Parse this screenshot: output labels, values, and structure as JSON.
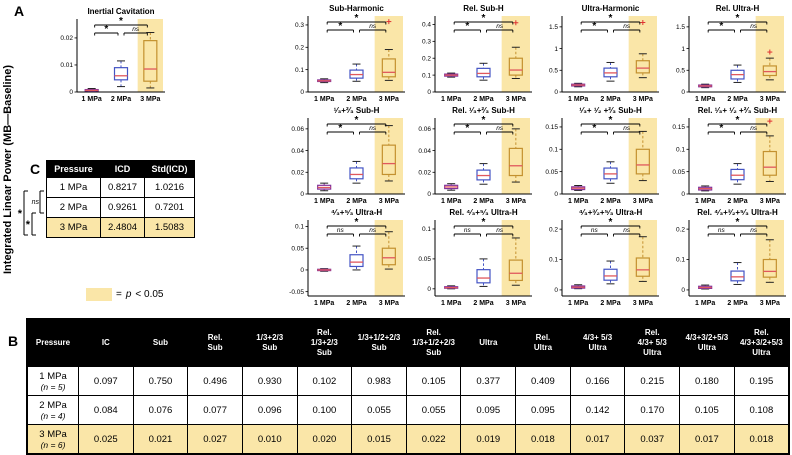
{
  "figure": {
    "panel_a_label": "A",
    "panel_b_label": "B",
    "panel_c_label": "C",
    "y_axis_label": "Integrated Linear Power (MB—Baseline)"
  },
  "chart_data": {
    "type": "box",
    "x_categories": [
      "1 MPa",
      "2 MPa",
      "3 MPa"
    ],
    "highlight_note": "yellow band on 3 MPa group = p < 0.05",
    "plots": [
      {
        "title": "Inertial Cavitation",
        "ylim": [
          0,
          0.027
        ],
        "yticks": [
          0,
          0.01,
          0.02
        ],
        "boxes": [
          {
            "lo": 0.0002,
            "q1": 0.0004,
            "med": 0.0006,
            "q3": 0.0009,
            "hi": 0.0013,
            "outliers": []
          },
          {
            "lo": 0.002,
            "q1": 0.0045,
            "med": 0.006,
            "q3": 0.009,
            "hi": 0.0115,
            "outliers": []
          },
          {
            "lo": 0.0015,
            "q1": 0.004,
            "med": 0.0085,
            "q3": 0.019,
            "hi": 0.022,
            "outliers": []
          }
        ],
        "highlight": 2,
        "sig": [
          {
            "span": [
              0,
              2
            ],
            "label": "*",
            "level": 0
          },
          {
            "span": [
              0,
              1
            ],
            "label": "*",
            "level": 1
          },
          {
            "span": [
              1,
              2
            ],
            "label": "ns",
            "level": 1
          }
        ]
      },
      {
        "title": "Sub-Harmonic",
        "ylim": [
          0,
          0.34
        ],
        "yticks": [
          0,
          0.1,
          0.2,
          0.3
        ],
        "boxes": [
          {
            "lo": 0.042,
            "q1": 0.047,
            "med": 0.05,
            "q3": 0.054,
            "hi": 0.059,
            "outliers": []
          },
          {
            "lo": 0.048,
            "q1": 0.062,
            "med": 0.078,
            "q3": 0.098,
            "hi": 0.125,
            "outliers": []
          },
          {
            "lo": 0.052,
            "q1": 0.068,
            "med": 0.088,
            "q3": 0.148,
            "hi": 0.19,
            "outliers": [
              0.315
            ]
          }
        ],
        "highlight": 2,
        "sig": [
          {
            "span": [
              0,
              2
            ],
            "label": "*",
            "level": 0
          },
          {
            "span": [
              0,
              1
            ],
            "label": "*",
            "level": 1
          },
          {
            "span": [
              1,
              2
            ],
            "label": "ns",
            "level": 1
          }
        ]
      },
      {
        "title": "Rel. Sub-H",
        "ylim": [
          0,
          0.45
        ],
        "yticks": [
          0,
          0.1,
          0.2,
          0.3,
          0.4
        ],
        "boxes": [
          {
            "lo": 0.088,
            "q1": 0.094,
            "med": 0.1,
            "q3": 0.106,
            "hi": 0.112,
            "outliers": []
          },
          {
            "lo": 0.07,
            "q1": 0.09,
            "med": 0.11,
            "q3": 0.14,
            "hi": 0.17,
            "outliers": []
          },
          {
            "lo": 0.08,
            "q1": 0.1,
            "med": 0.13,
            "q3": 0.2,
            "hi": 0.265,
            "outliers": [
              0.41
            ]
          }
        ],
        "highlight": 2,
        "sig": [
          {
            "span": [
              0,
              2
            ],
            "label": "*",
            "level": 0
          },
          {
            "span": [
              0,
              1
            ],
            "label": "*",
            "level": 1
          },
          {
            "span": [
              1,
              2
            ],
            "label": "ns",
            "level": 1
          }
        ]
      },
      {
        "title": "Ultra-Harmonic",
        "ylim": [
          0,
          1.75
        ],
        "yticks": [
          0,
          0.5,
          1,
          1.5
        ],
        "boxes": [
          {
            "lo": 0.12,
            "q1": 0.14,
            "med": 0.16,
            "q3": 0.18,
            "hi": 0.2,
            "outliers": []
          },
          {
            "lo": 0.25,
            "q1": 0.35,
            "med": 0.44,
            "q3": 0.55,
            "hi": 0.68,
            "outliers": []
          },
          {
            "lo": 0.33,
            "q1": 0.44,
            "med": 0.55,
            "q3": 0.72,
            "hi": 0.88,
            "outliers": [
              1.6
            ]
          }
        ],
        "highlight": 2,
        "sig": [
          {
            "span": [
              0,
              2
            ],
            "label": "*",
            "level": 0
          },
          {
            "span": [
              0,
              1
            ],
            "label": "*",
            "level": 1
          },
          {
            "span": [
              1,
              2
            ],
            "label": "ns",
            "level": 1
          }
        ]
      },
      {
        "title": "Rel. Ultra-H",
        "ylim": [
          0,
          1.75
        ],
        "yticks": [
          0,
          0.5,
          1,
          1.5
        ],
        "boxes": [
          {
            "lo": 0.1,
            "q1": 0.12,
            "med": 0.14,
            "q3": 0.16,
            "hi": 0.18,
            "outliers": []
          },
          {
            "lo": 0.22,
            "q1": 0.3,
            "med": 0.4,
            "q3": 0.5,
            "hi": 0.62,
            "outliers": []
          },
          {
            "lo": 0.28,
            "q1": 0.38,
            "med": 0.47,
            "q3": 0.6,
            "hi": 0.78,
            "outliers": [
              0.92
            ]
          }
        ],
        "highlight": 2,
        "sig": [
          {
            "span": [
              0,
              2
            ],
            "label": "*",
            "level": 0
          },
          {
            "span": [
              0,
              1
            ],
            "label": "*",
            "level": 1
          },
          {
            "span": [
              1,
              2
            ],
            "label": "ns",
            "level": 1
          }
        ]
      },
      {
        "title": "¹⁄₃+²⁄₃ Sub-H",
        "ylim": [
          0,
          0.07
        ],
        "yticks": [
          0,
          0.02,
          0.04,
          0.06
        ],
        "boxes": [
          {
            "lo": 0.003,
            "q1": 0.0045,
            "med": 0.006,
            "q3": 0.008,
            "hi": 0.01,
            "outliers": []
          },
          {
            "lo": 0.01,
            "q1": 0.014,
            "med": 0.018,
            "q3": 0.024,
            "hi": 0.03,
            "outliers": []
          },
          {
            "lo": 0.012,
            "q1": 0.018,
            "med": 0.028,
            "q3": 0.045,
            "hi": 0.063,
            "outliers": []
          }
        ],
        "highlight": 2,
        "sig": [
          {
            "span": [
              0,
              2
            ],
            "label": "*",
            "level": 0
          },
          {
            "span": [
              0,
              1
            ],
            "label": "*",
            "level": 1
          },
          {
            "span": [
              1,
              2
            ],
            "label": "ns",
            "level": 1
          }
        ]
      },
      {
        "title": "Rel. ¹⁄₃+²⁄₃ Sub-H",
        "ylim": [
          0,
          0.07
        ],
        "yticks": [
          0,
          0.02,
          0.04,
          0.06
        ],
        "boxes": [
          {
            "lo": 0.0035,
            "q1": 0.005,
            "med": 0.0065,
            "q3": 0.008,
            "hi": 0.0095,
            "outliers": []
          },
          {
            "lo": 0.009,
            "q1": 0.013,
            "med": 0.017,
            "q3": 0.022,
            "hi": 0.028,
            "outliers": []
          },
          {
            "lo": 0.011,
            "q1": 0.017,
            "med": 0.026,
            "q3": 0.042,
            "hi": 0.06,
            "outliers": []
          }
        ],
        "highlight": 2,
        "sig": [
          {
            "span": [
              0,
              2
            ],
            "label": "*",
            "level": 0
          },
          {
            "span": [
              0,
              1
            ],
            "label": "*",
            "level": 1
          },
          {
            "span": [
              1,
              2
            ],
            "label": "ns",
            "level": 1
          }
        ]
      },
      {
        "title": "¹⁄₃+ ¹⁄₂ +²⁄₃ Sub-H",
        "ylim": [
          0,
          0.17
        ],
        "yticks": [
          0,
          0.05,
          0.1,
          0.15
        ],
        "boxes": [
          {
            "lo": 0.008,
            "q1": 0.01,
            "med": 0.013,
            "q3": 0.016,
            "hi": 0.019,
            "outliers": []
          },
          {
            "lo": 0.024,
            "q1": 0.034,
            "med": 0.045,
            "q3": 0.058,
            "hi": 0.072,
            "outliers": []
          },
          {
            "lo": 0.03,
            "q1": 0.045,
            "med": 0.065,
            "q3": 0.1,
            "hi": 0.14,
            "outliers": []
          }
        ],
        "highlight": 2,
        "sig": [
          {
            "span": [
              0,
              2
            ],
            "label": "*",
            "level": 0
          },
          {
            "span": [
              0,
              1
            ],
            "label": "*",
            "level": 1
          },
          {
            "span": [
              1,
              2
            ],
            "label": "ns",
            "level": 1
          }
        ]
      },
      {
        "title": "Rel. ¹⁄₃+ ¹⁄₂ +²⁄₃ Sub-H",
        "ylim": [
          0,
          0.17
        ],
        "yticks": [
          0,
          0.05,
          0.1,
          0.15
        ],
        "boxes": [
          {
            "lo": 0.007,
            "q1": 0.009,
            "med": 0.012,
            "q3": 0.015,
            "hi": 0.018,
            "outliers": []
          },
          {
            "lo": 0.022,
            "q1": 0.032,
            "med": 0.042,
            "q3": 0.055,
            "hi": 0.068,
            "outliers": []
          },
          {
            "lo": 0.028,
            "q1": 0.042,
            "med": 0.06,
            "q3": 0.095,
            "hi": 0.13,
            "outliers": [
              0.163
            ]
          }
        ],
        "highlight": 2,
        "sig": [
          {
            "span": [
              0,
              2
            ],
            "label": "*",
            "level": 0
          },
          {
            "span": [
              0,
              1
            ],
            "label": "*",
            "level": 1
          },
          {
            "span": [
              1,
              2
            ],
            "label": "ns",
            "level": 1
          }
        ]
      },
      {
        "title": "⁴⁄₃+⁵⁄₃ Ultra-H",
        "ylim": [
          -0.06,
          0.115
        ],
        "yticks": [
          -0.05,
          0,
          0.05,
          0.1
        ],
        "boxes": [
          {
            "lo": -0.003,
            "q1": -0.0015,
            "med": 0,
            "q3": 0.0015,
            "hi": 0.003,
            "outliers": []
          },
          {
            "lo": 0,
            "q1": 0.008,
            "med": 0.018,
            "q3": 0.035,
            "hi": 0.055,
            "outliers": []
          },
          {
            "lo": 0.002,
            "q1": 0.012,
            "med": 0.028,
            "q3": 0.05,
            "hi": 0.088,
            "outliers": []
          }
        ],
        "highlight": 2,
        "sig": [
          {
            "span": [
              0,
              2
            ],
            "label": "*",
            "level": 0
          },
          {
            "span": [
              0,
              1
            ],
            "label": "ns",
            "level": 1
          },
          {
            "span": [
              1,
              2
            ],
            "label": "ns",
            "level": 1
          }
        ]
      },
      {
        "title": "Rel. ⁴⁄₃+⁵⁄₃ Ultra-H",
        "ylim": [
          -0.012,
          0.115
        ],
        "yticks": [
          0,
          0.05,
          0.1
        ],
        "boxes": [
          {
            "lo": 0,
            "q1": 0.001,
            "med": 0.002,
            "q3": 0.0035,
            "hi": 0.005,
            "outliers": []
          },
          {
            "lo": 0.004,
            "q1": 0.01,
            "med": 0.018,
            "q3": 0.032,
            "hi": 0.05,
            "outliers": []
          },
          {
            "lo": 0.006,
            "q1": 0.014,
            "med": 0.026,
            "q3": 0.048,
            "hi": 0.085,
            "outliers": []
          }
        ],
        "highlight": 2,
        "sig": [
          {
            "span": [
              0,
              2
            ],
            "label": "*",
            "level": 0
          },
          {
            "span": [
              0,
              1
            ],
            "label": "ns",
            "level": 1
          },
          {
            "span": [
              1,
              2
            ],
            "label": "ns",
            "level": 1
          }
        ]
      },
      {
        "title": "⁴⁄₃+³⁄₂+⁵⁄₃ Ultra-H",
        "ylim": [
          -0.02,
          0.23
        ],
        "yticks": [
          0,
          0.1,
          0.2
        ],
        "boxes": [
          {
            "lo": 0.004,
            "q1": 0.006,
            "med": 0.009,
            "q3": 0.013,
            "hi": 0.017,
            "outliers": []
          },
          {
            "lo": 0.02,
            "q1": 0.032,
            "med": 0.046,
            "q3": 0.068,
            "hi": 0.095,
            "outliers": []
          },
          {
            "lo": 0.028,
            "q1": 0.045,
            "med": 0.066,
            "q3": 0.105,
            "hi": 0.175,
            "outliers": []
          }
        ],
        "highlight": 2,
        "sig": [
          {
            "span": [
              0,
              2
            ],
            "label": "*",
            "level": 0
          },
          {
            "span": [
              0,
              1
            ],
            "label": "ns",
            "level": 1
          },
          {
            "span": [
              1,
              2
            ],
            "label": "ns",
            "level": 1
          }
        ]
      },
      {
        "title": "Rel. ⁴⁄₃+³⁄₂+⁵⁄₃ Ultra-H",
        "ylim": [
          -0.02,
          0.23
        ],
        "yticks": [
          0,
          0.1,
          0.2
        ],
        "boxes": [
          {
            "lo": 0.003,
            "q1": 0.005,
            "med": 0.008,
            "q3": 0.012,
            "hi": 0.016,
            "outliers": []
          },
          {
            "lo": 0.018,
            "q1": 0.03,
            "med": 0.043,
            "q3": 0.062,
            "hi": 0.09,
            "outliers": []
          },
          {
            "lo": 0.025,
            "q1": 0.042,
            "med": 0.061,
            "q3": 0.1,
            "hi": 0.165,
            "outliers": []
          }
        ],
        "highlight": 2,
        "sig": [
          {
            "span": [
              0,
              2
            ],
            "label": "*",
            "level": 0
          },
          {
            "span": [
              0,
              1
            ],
            "label": "ns",
            "level": 1
          },
          {
            "span": [
              1,
              2
            ],
            "label": "ns",
            "level": 1
          }
        ]
      }
    ]
  },
  "panelC": {
    "headers": [
      "Pressure",
      "ICD",
      "Std(ICD)"
    ],
    "rows": [
      [
        "1 MPa",
        "0.8217",
        "1.0216"
      ],
      [
        "2 MPa",
        "0.9261",
        "0.7201"
      ],
      [
        "3 MPa",
        "2.4804",
        "1.5083"
      ]
    ],
    "highlight_row": 2,
    "sig": [
      {
        "span": [
          0,
          1
        ],
        "label": "ns"
      },
      {
        "span": [
          1,
          2
        ],
        "label": "*"
      },
      {
        "span": [
          0,
          2
        ],
        "label": "*"
      }
    ]
  },
  "legend": {
    "eq": "=",
    "p": "p",
    "rest": "< 0.05"
  },
  "panelB": {
    "headers": [
      "Pressure",
      "IC",
      "Sub",
      "Rel.\nSub",
      "1/3+2/3\nSub",
      "Rel.\n1/3+2/3\nSub",
      "1/3+1/2+2/3\nSub",
      "Rel.\n1/3+1/2+2/3\nSub",
      "Ultra",
      "Rel.\nUltra",
      "4/3+ 5/3\nUltra",
      "Rel.\n4/3+ 5/3\nUltra",
      "4/3+3/2+5/3\nUltra",
      "Rel.\n4/3+3/2+5/3\nUltra"
    ],
    "rows": [
      {
        "pressure": "1 MPa",
        "n": "(n = 5)",
        "values": [
          "0.097",
          "0.750",
          "0.496",
          "0.930",
          "0.102",
          "0.983",
          "0.105",
          "0.377",
          "0.409",
          "0.166",
          "0.215",
          "0.180",
          "0.195"
        ]
      },
      {
        "pressure": "2 MPa",
        "n": "(n = 4)",
        "values": [
          "0.084",
          "0.076",
          "0.077",
          "0.096",
          "0.100",
          "0.055",
          "0.055",
          "0.095",
          "0.095",
          "0.142",
          "0.170",
          "0.105",
          "0.108"
        ]
      },
      {
        "pressure": "3 MPa",
        "n": "(n = 6)",
        "values": [
          "0.025",
          "0.021",
          "0.027",
          "0.010",
          "0.020",
          "0.015",
          "0.022",
          "0.019",
          "0.018",
          "0.017",
          "0.037",
          "0.017",
          "0.018"
        ]
      }
    ],
    "highlight_row": 2
  },
  "colors": {
    "highlight": "#FAE6A8",
    "box": [
      "#83329B",
      "#4353C4",
      "#C3912F"
    ],
    "median": "#E0585D",
    "outlier": "#E03131",
    "header_bg": "#000000",
    "header_fg": "#FFFFFF"
  }
}
